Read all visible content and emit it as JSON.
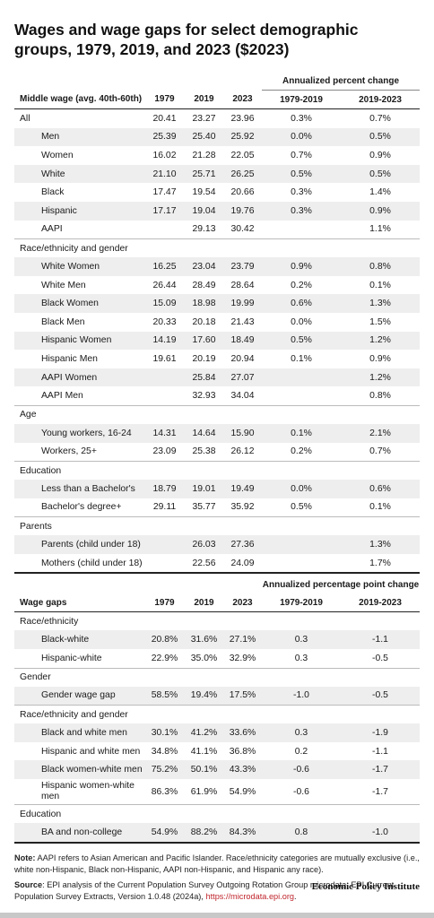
{
  "title": "Wages and wage gaps for select demographic groups, 1979, 2019, and 2023 ($2023)",
  "wages": {
    "group_header": "Annualized percent change",
    "columns": [
      "Middle wage (avg. 40th-60th)",
      "1979",
      "2019",
      "2023",
      "1979-2019",
      "2019-2023"
    ],
    "sections": [
      {
        "label": "",
        "rows": [
          {
            "label": "All",
            "v1979": "20.41",
            "v2019": "23.27",
            "v2023": "23.96",
            "p1": "0.3%",
            "p2": "0.7%",
            "top": true
          },
          {
            "label": "Men",
            "v1979": "25.39",
            "v2019": "25.40",
            "v2023": "25.92",
            "p1": "0.0%",
            "p2": "0.5%"
          },
          {
            "label": "Women",
            "v1979": "16.02",
            "v2019": "21.28",
            "v2023": "22.05",
            "p1": "0.7%",
            "p2": "0.9%"
          },
          {
            "label": "White",
            "v1979": "21.10",
            "v2019": "25.71",
            "v2023": "26.25",
            "p1": "0.5%",
            "p2": "0.5%"
          },
          {
            "label": "Black",
            "v1979": "17.47",
            "v2019": "19.54",
            "v2023": "20.66",
            "p1": "0.3%",
            "p2": "1.4%"
          },
          {
            "label": "Hispanic",
            "v1979": "17.17",
            "v2019": "19.04",
            "v2023": "19.76",
            "p1": "0.3%",
            "p2": "0.9%"
          },
          {
            "label": "AAPI",
            "v1979": "",
            "v2019": "29.13",
            "v2023": "30.42",
            "p1": "",
            "p2": "1.1%"
          }
        ]
      },
      {
        "label": "Race/ethnicity and gender",
        "rows": [
          {
            "label": "White Women",
            "v1979": "16.25",
            "v2019": "23.04",
            "v2023": "23.79",
            "p1": "0.9%",
            "p2": "0.8%"
          },
          {
            "label": "White Men",
            "v1979": "26.44",
            "v2019": "28.49",
            "v2023": "28.64",
            "p1": "0.2%",
            "p2": "0.1%"
          },
          {
            "label": "Black Women",
            "v1979": "15.09",
            "v2019": "18.98",
            "v2023": "19.99",
            "p1": "0.6%",
            "p2": "1.3%"
          },
          {
            "label": "Black Men",
            "v1979": "20.33",
            "v2019": "20.18",
            "v2023": "21.43",
            "p1": "0.0%",
            "p2": "1.5%"
          },
          {
            "label": "Hispanic Women",
            "v1979": "14.19",
            "v2019": "17.60",
            "v2023": "18.49",
            "p1": "0.5%",
            "p2": "1.2%"
          },
          {
            "label": "Hispanic Men",
            "v1979": "19.61",
            "v2019": "20.19",
            "v2023": "20.94",
            "p1": "0.1%",
            "p2": "0.9%"
          },
          {
            "label": "AAPI Women",
            "v1979": "",
            "v2019": "25.84",
            "v2023": "27.07",
            "p1": "",
            "p2": "1.2%"
          },
          {
            "label": "AAPI Men",
            "v1979": "",
            "v2019": "32.93",
            "v2023": "34.04",
            "p1": "",
            "p2": "0.8%"
          }
        ]
      },
      {
        "label": "Age",
        "rows": [
          {
            "label": "Young workers, 16-24",
            "v1979": "14.31",
            "v2019": "14.64",
            "v2023": "15.90",
            "p1": "0.1%",
            "p2": "2.1%"
          },
          {
            "label": "Workers, 25+",
            "v1979": "23.09",
            "v2019": "25.38",
            "v2023": "26.12",
            "p1": "0.2%",
            "p2": "0.7%"
          }
        ]
      },
      {
        "label": "Education",
        "rows": [
          {
            "label": "Less than a Bachelor's",
            "v1979": "18.79",
            "v2019": "19.01",
            "v2023": "19.49",
            "p1": "0.0%",
            "p2": "0.6%"
          },
          {
            "label": "Bachelor's degree+",
            "v1979": "29.11",
            "v2019": "35.77",
            "v2023": "35.92",
            "p1": "0.5%",
            "p2": "0.1%"
          }
        ]
      },
      {
        "label": "Parents",
        "rows": [
          {
            "label": "Parents (child under 18)",
            "v1979": "",
            "v2019": "26.03",
            "v2023": "27.36",
            "p1": "",
            "p2": "1.3%"
          },
          {
            "label": "Mothers (child under 18)",
            "v1979": "",
            "v2019": "22.56",
            "v2023": "24.09",
            "p1": "",
            "p2": "1.7%"
          }
        ]
      }
    ]
  },
  "gaps": {
    "group_header": "Annualized percentage point change",
    "columns": [
      "Wage gaps",
      "1979",
      "2019",
      "2023",
      "1979-2019",
      "2019-2023"
    ],
    "sections": [
      {
        "label": "Race/ethnicity",
        "rows": [
          {
            "label": "Black-white",
            "v1979": "20.8%",
            "v2019": "31.6%",
            "v2023": "27.1%",
            "p1": "0.3",
            "p2": "-1.1"
          },
          {
            "label": "Hispanic-white",
            "v1979": "22.9%",
            "v2019": "35.0%",
            "v2023": "32.9%",
            "p1": "0.3",
            "p2": "-0.5"
          }
        ]
      },
      {
        "label": "Gender",
        "rows": [
          {
            "label": "Gender wage gap",
            "v1979": "58.5%",
            "v2019": "19.4%",
            "v2023": "17.5%",
            "p1": "-1.0",
            "p2": "-0.5"
          }
        ]
      },
      {
        "label": "Race/ethnicity and gender",
        "rows": [
          {
            "label": "Black and white men",
            "v1979": "30.1%",
            "v2019": "41.2%",
            "v2023": "33.6%",
            "p1": "0.3",
            "p2": "-1.9"
          },
          {
            "label": "Hispanic and white men",
            "v1979": "34.8%",
            "v2019": "41.1%",
            "v2023": "36.8%",
            "p1": "0.2",
            "p2": "-1.1"
          },
          {
            "label": "Black women-white men",
            "v1979": "75.2%",
            "v2019": "50.1%",
            "v2023": "43.3%",
            "p1": "-0.6",
            "p2": "-1.7"
          },
          {
            "label": "Hispanic women-white men",
            "v1979": "86.3%",
            "v2019": "61.9%",
            "v2023": "54.9%",
            "p1": "-0.6",
            "p2": "-1.7",
            "tall": true
          }
        ]
      },
      {
        "label": "Education",
        "rows": [
          {
            "label": "BA and non-college",
            "v1979": "54.9%",
            "v2019": "88.2%",
            "v2023": "84.3%",
            "p1": "0.8",
            "p2": "-1.0"
          }
        ]
      }
    ]
  },
  "notes": {
    "note_label": "Note:",
    "note_text": " AAPI refers to Asian American and Pacific Islander. Race/ethnicity categories are mutually exclusive (i.e., white non-Hispanic, Black non-Hispanic, AAPI non-Hispanic, and Hispanic any race).",
    "source_label": "Source",
    "source_text": ": EPI analysis of the Current Population Survey Outgoing Rotation Group microdata, EPI Current Population Survey Extracts, Version 1.0.48 (2024a), ",
    "source_link": "https://microdata.epi.org",
    "source_end": "."
  },
  "brand": "Economic Policy Institute"
}
